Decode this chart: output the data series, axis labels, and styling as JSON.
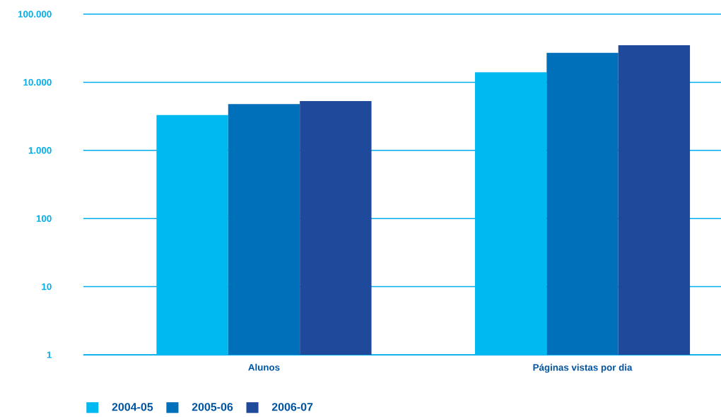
{
  "chart_data": {
    "type": "bar",
    "log": true,
    "categories": [
      "Alunos",
      "Páginas  vistas por dia"
    ],
    "series": [
      {
        "name": "2004-05",
        "color": "#00b9f0",
        "values": [
          3300,
          14000
        ]
      },
      {
        "name": "2005-06",
        "color": "#0070bb",
        "values": [
          4800,
          27000
        ]
      },
      {
        "name": "2006-07",
        "color": "#1f4a9c",
        "values": [
          5300,
          35000
        ]
      }
    ],
    "ylim": [
      1,
      100000
    ],
    "yticks": [
      1,
      10,
      100,
      {
        "value": 1000,
        "label": "1.000"
      },
      {
        "value": 10000,
        "label": "10.000"
      },
      {
        "value": 100000,
        "label": "100.000"
      }
    ],
    "grid": "y",
    "legend": "bottom left"
  }
}
